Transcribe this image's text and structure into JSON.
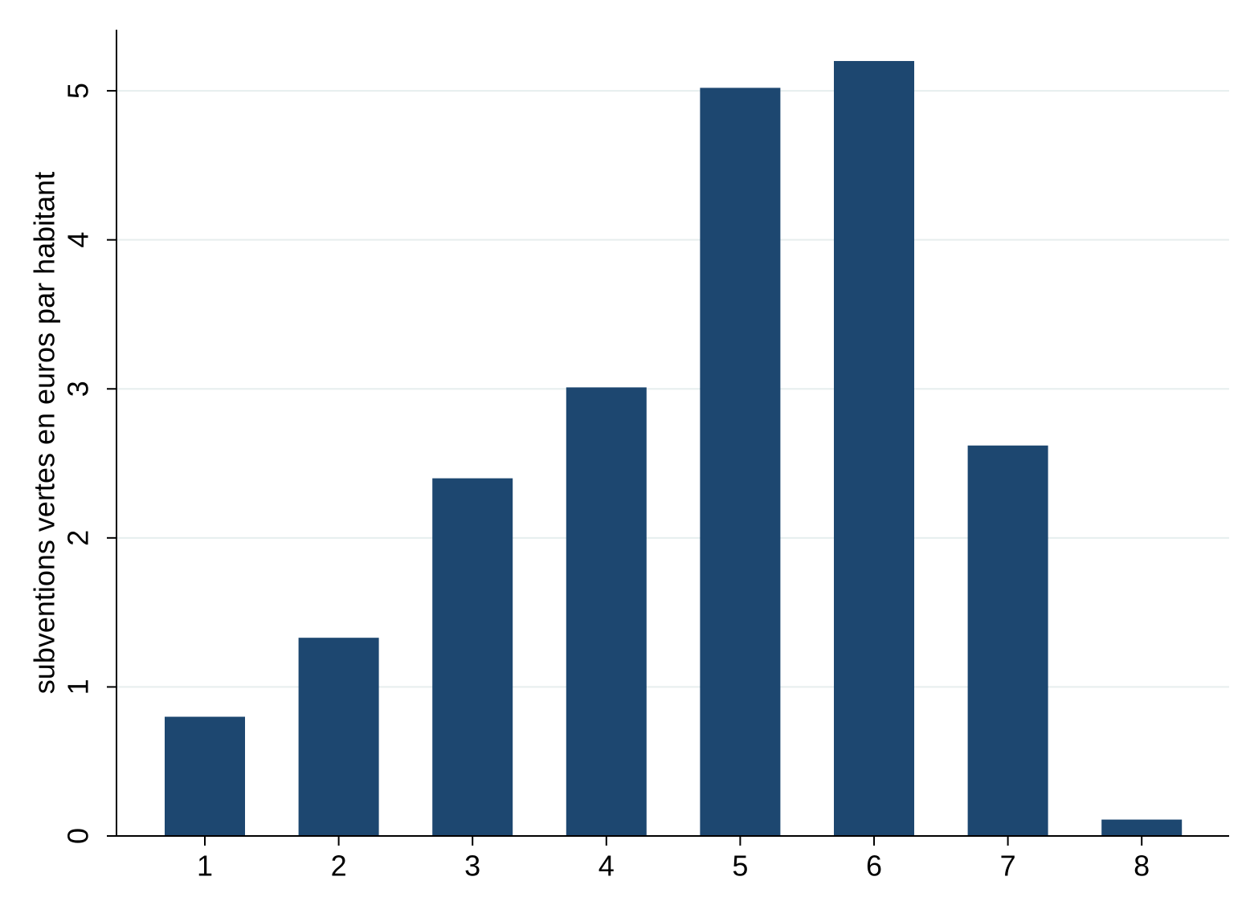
{
  "chart_data": {
    "type": "bar",
    "y_label": "subventions vertes en euros par habitant",
    "categories": [
      "1",
      "2",
      "3",
      "4",
      "5",
      "6",
      "7",
      "8"
    ],
    "values": [
      0.8,
      1.33,
      2.4,
      3.01,
      5.02,
      5.2,
      2.62,
      0.11
    ],
    "color": "#1d4770",
    "ylim": [
      0,
      5.41
    ],
    "yticks": [
      0,
      1,
      2,
      3,
      4,
      5
    ],
    "grid": true
  }
}
